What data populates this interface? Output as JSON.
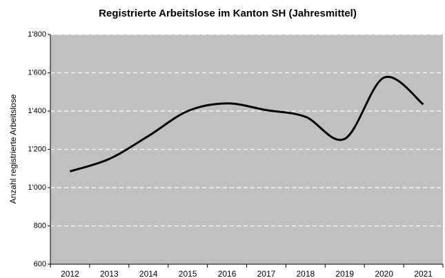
{
  "chart_data": {
    "type": "line",
    "title": "Registrierte Arbeitslose im Kanton SH (Jahresmittel)",
    "y_label": "Anzahl registrierte Arbeitslose",
    "categories": [
      "2012",
      "2013",
      "2014",
      "2015",
      "2016",
      "2017",
      "2018",
      "2019",
      "2020",
      "2021"
    ],
    "values": [
      1085,
      1150,
      1270,
      1400,
      1440,
      1405,
      1370,
      1255,
      1575,
      1435
    ],
    "color": "#000000",
    "plot_background": "#c0c0c0",
    "ylim": [
      600,
      1800
    ],
    "yticks": [
      600,
      800,
      {
        "value": 1000,
        "label": "1'000"
      },
      {
        "value": 1200,
        "label": "1'200"
      },
      {
        "value": 1400,
        "label": "1'400"
      },
      {
        "value": 1600,
        "label": "1'600"
      },
      {
        "value": 1800,
        "label": "1'800"
      }
    ],
    "grid": true,
    "smooth": true
  }
}
